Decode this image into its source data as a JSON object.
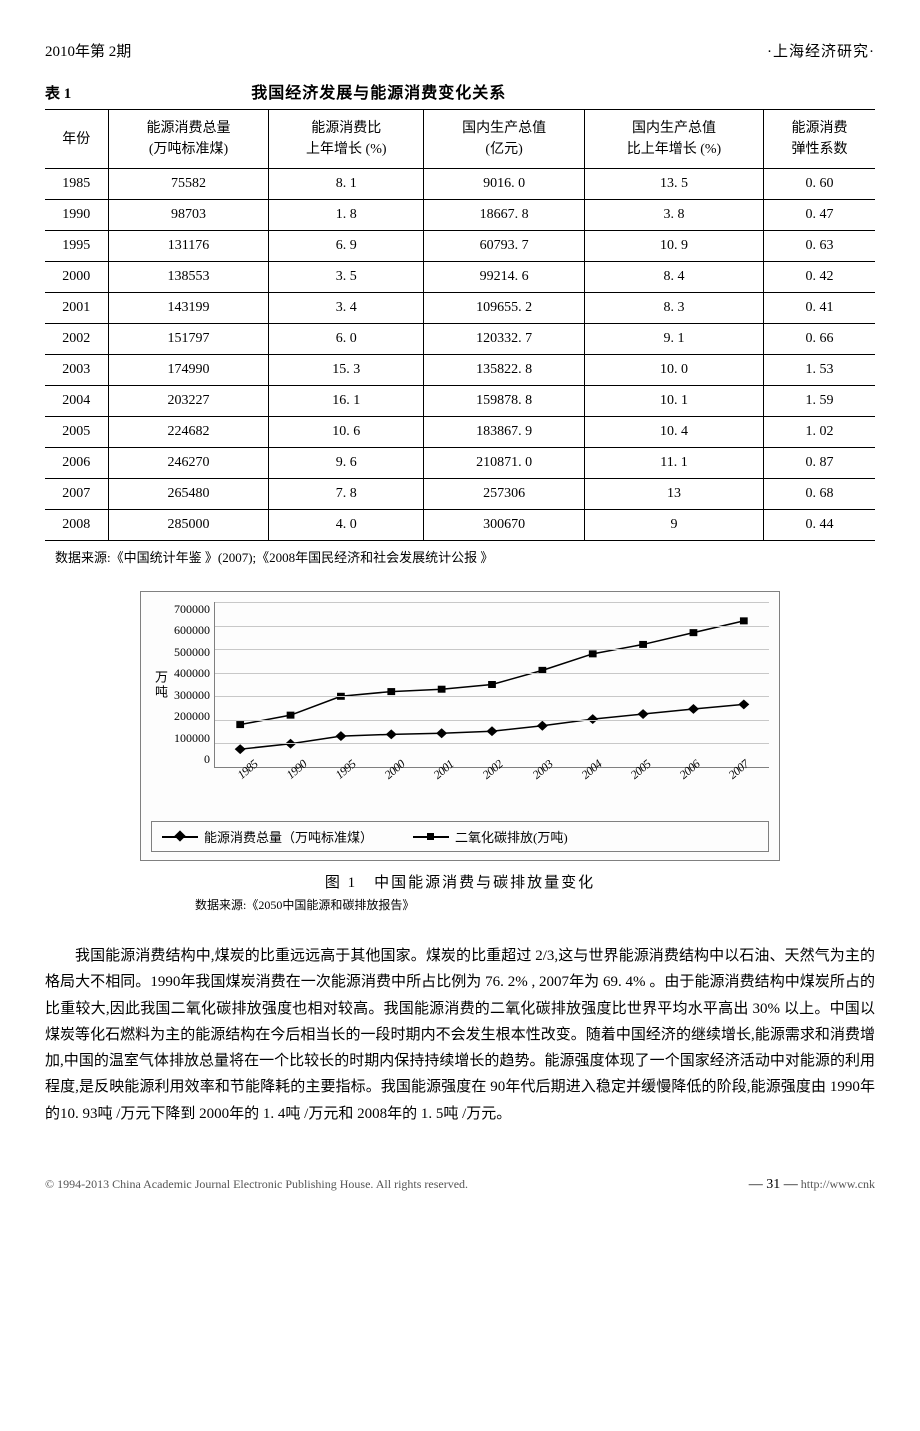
{
  "header": {
    "issue": "2010年第 2期",
    "journal": "·上海经济研究·"
  },
  "table1": {
    "type": "table",
    "number": "表 1",
    "title": "我国经济发展与能源消费变化关系",
    "columns": [
      "年份",
      "能源消费总量\n(万吨标准煤)",
      "能源消费比\n上年增长 (%)",
      "国内生产总值\n(亿元)",
      "国内生产总值\n比上年增长 (%)",
      "能源消费\n弹性系数"
    ],
    "rows": [
      [
        "1985",
        "75582",
        "8. 1",
        "9016. 0",
        "13. 5",
        "0. 60"
      ],
      [
        "1990",
        "98703",
        "1. 8",
        "18667. 8",
        "3. 8",
        "0. 47"
      ],
      [
        "1995",
        "131176",
        "6. 9",
        "60793. 7",
        "10. 9",
        "0. 63"
      ],
      [
        "2000",
        "138553",
        "3. 5",
        "99214. 6",
        "8. 4",
        "0. 42"
      ],
      [
        "2001",
        "143199",
        "3. 4",
        "109655. 2",
        "8. 3",
        "0. 41"
      ],
      [
        "2002",
        "151797",
        "6. 0",
        "120332. 7",
        "9. 1",
        "0. 66"
      ],
      [
        "2003",
        "174990",
        "15. 3",
        "135822. 8",
        "10. 0",
        "1. 53"
      ],
      [
        "2004",
        "203227",
        "16. 1",
        "159878. 8",
        "10. 1",
        "1. 59"
      ],
      [
        "2005",
        "224682",
        "10. 6",
        "183867. 9",
        "10. 4",
        "1. 02"
      ],
      [
        "2006",
        "246270",
        "9. 6",
        "210871. 0",
        "11. 1",
        "0. 87"
      ],
      [
        "2007",
        "265480",
        "7. 8",
        "257306",
        "13",
        "0. 68"
      ],
      [
        "2008",
        "285000",
        "4. 0",
        "300670",
        "9",
        "0. 44"
      ]
    ],
    "source": "数据来源:《中国统计年鉴 》(2007);《2008年国民经济和社会发展统计公报 》"
  },
  "figure1": {
    "type": "line",
    "caption": "图 1　中国能源消费与碳排放量变化",
    "source": "数据来源:《2050中国能源和碳排放报告》",
    "y_label": "万吨",
    "y_ticks": [
      "700000",
      "600000",
      "500000",
      "400000",
      "300000",
      "200000",
      "100000",
      "0"
    ],
    "x_ticks": [
      "1985",
      "1990",
      "1995",
      "2000",
      "2001",
      "2002",
      "2003",
      "2004",
      "2005",
      "2006",
      "2007"
    ],
    "ylim": [
      0,
      700000
    ],
    "grid_color": "#c8c8c8",
    "border_color": "#808080",
    "background_color": "#fdfdfd",
    "line_color": "#000000",
    "marker_size": 7,
    "label_fontsize": 12,
    "series": [
      {
        "name": "能源消费总量（万吨标准煤）",
        "marker": "diamond",
        "values": [
          75582,
          98703,
          131176,
          138553,
          143199,
          151797,
          174990,
          203227,
          224682,
          246270,
          265480
        ]
      },
      {
        "name": "二氧化碳排放(万吨)",
        "marker": "square",
        "values": [
          180000,
          220000,
          300000,
          320000,
          330000,
          350000,
          410000,
          480000,
          520000,
          570000,
          620000
        ]
      }
    ]
  },
  "body": {
    "paragraph": "我国能源消费结构中,煤炭的比重远远高于其他国家。煤炭的比重超过 2/3,这与世界能源消费结构中以石油、天然气为主的格局大不相同。1990年我国煤炭消费在一次能源消费中所占比例为 76. 2% , 2007年为 69. 4% 。由于能源消费结构中煤炭所占的比重较大,因此我国二氧化碳排放强度也相对较高。我国能源消费的二氧化碳排放强度比世界平均水平高出 30% 以上。中国以煤炭等化石燃料为主的能源结构在今后相当长的一段时期内不会发生根本性改变。随着中国经济的继续增长,能源需求和消费增加,中国的温室气体排放总量将在一个比较长的时期内保持持续增长的趋势。能源强度体现了一个国家经济活动中对能源的利用程度,是反映能源利用效率和节能降耗的主要指标。我国能源强度在 90年代后期进入稳定并缓慢降低的阶段,能源强度由 1990年的10. 93吨 /万元下降到 2000年的 1. 4吨 /万元和 2008年的 1. 5吨 /万元。"
  },
  "footer": {
    "copyright": "© 1994-2013 China Academic Journal Electronic Publishing House. All rights reserved.",
    "page": "— 31 —",
    "url": "http://www.cnk"
  }
}
